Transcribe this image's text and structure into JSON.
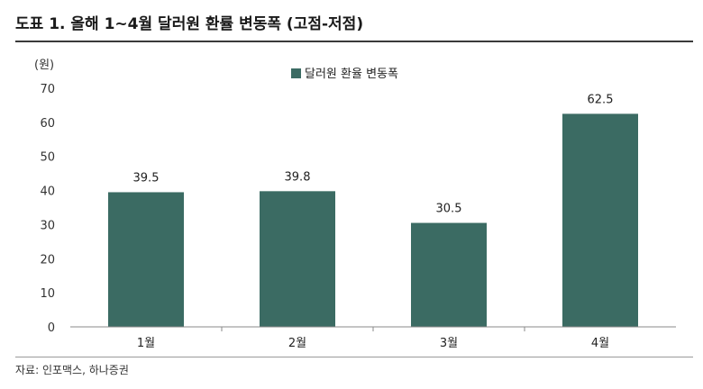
{
  "figure": {
    "title": "도표 1. 올해 1~4월 달러원 환률 변동폭 (고점-저점)",
    "source": "자료: 인포맥스, 하나증권"
  },
  "chart_data": {
    "type": "bar",
    "unit_label": "(원)",
    "categories": [
      "1월",
      "2월",
      "3월",
      "4월"
    ],
    "series": [
      {
        "name": "달러원 환율 변동폭",
        "values": [
          39.5,
          39.8,
          30.5,
          62.5
        ],
        "color": "#3b6b63"
      }
    ],
    "data_labels": [
      "39.5",
      "39.8",
      "30.5",
      "62.5"
    ],
    "ylim": [
      0,
      70
    ],
    "yticks": [
      0,
      10,
      20,
      30,
      40,
      50,
      60,
      70
    ],
    "grid": false,
    "legend_position": "top-center"
  }
}
